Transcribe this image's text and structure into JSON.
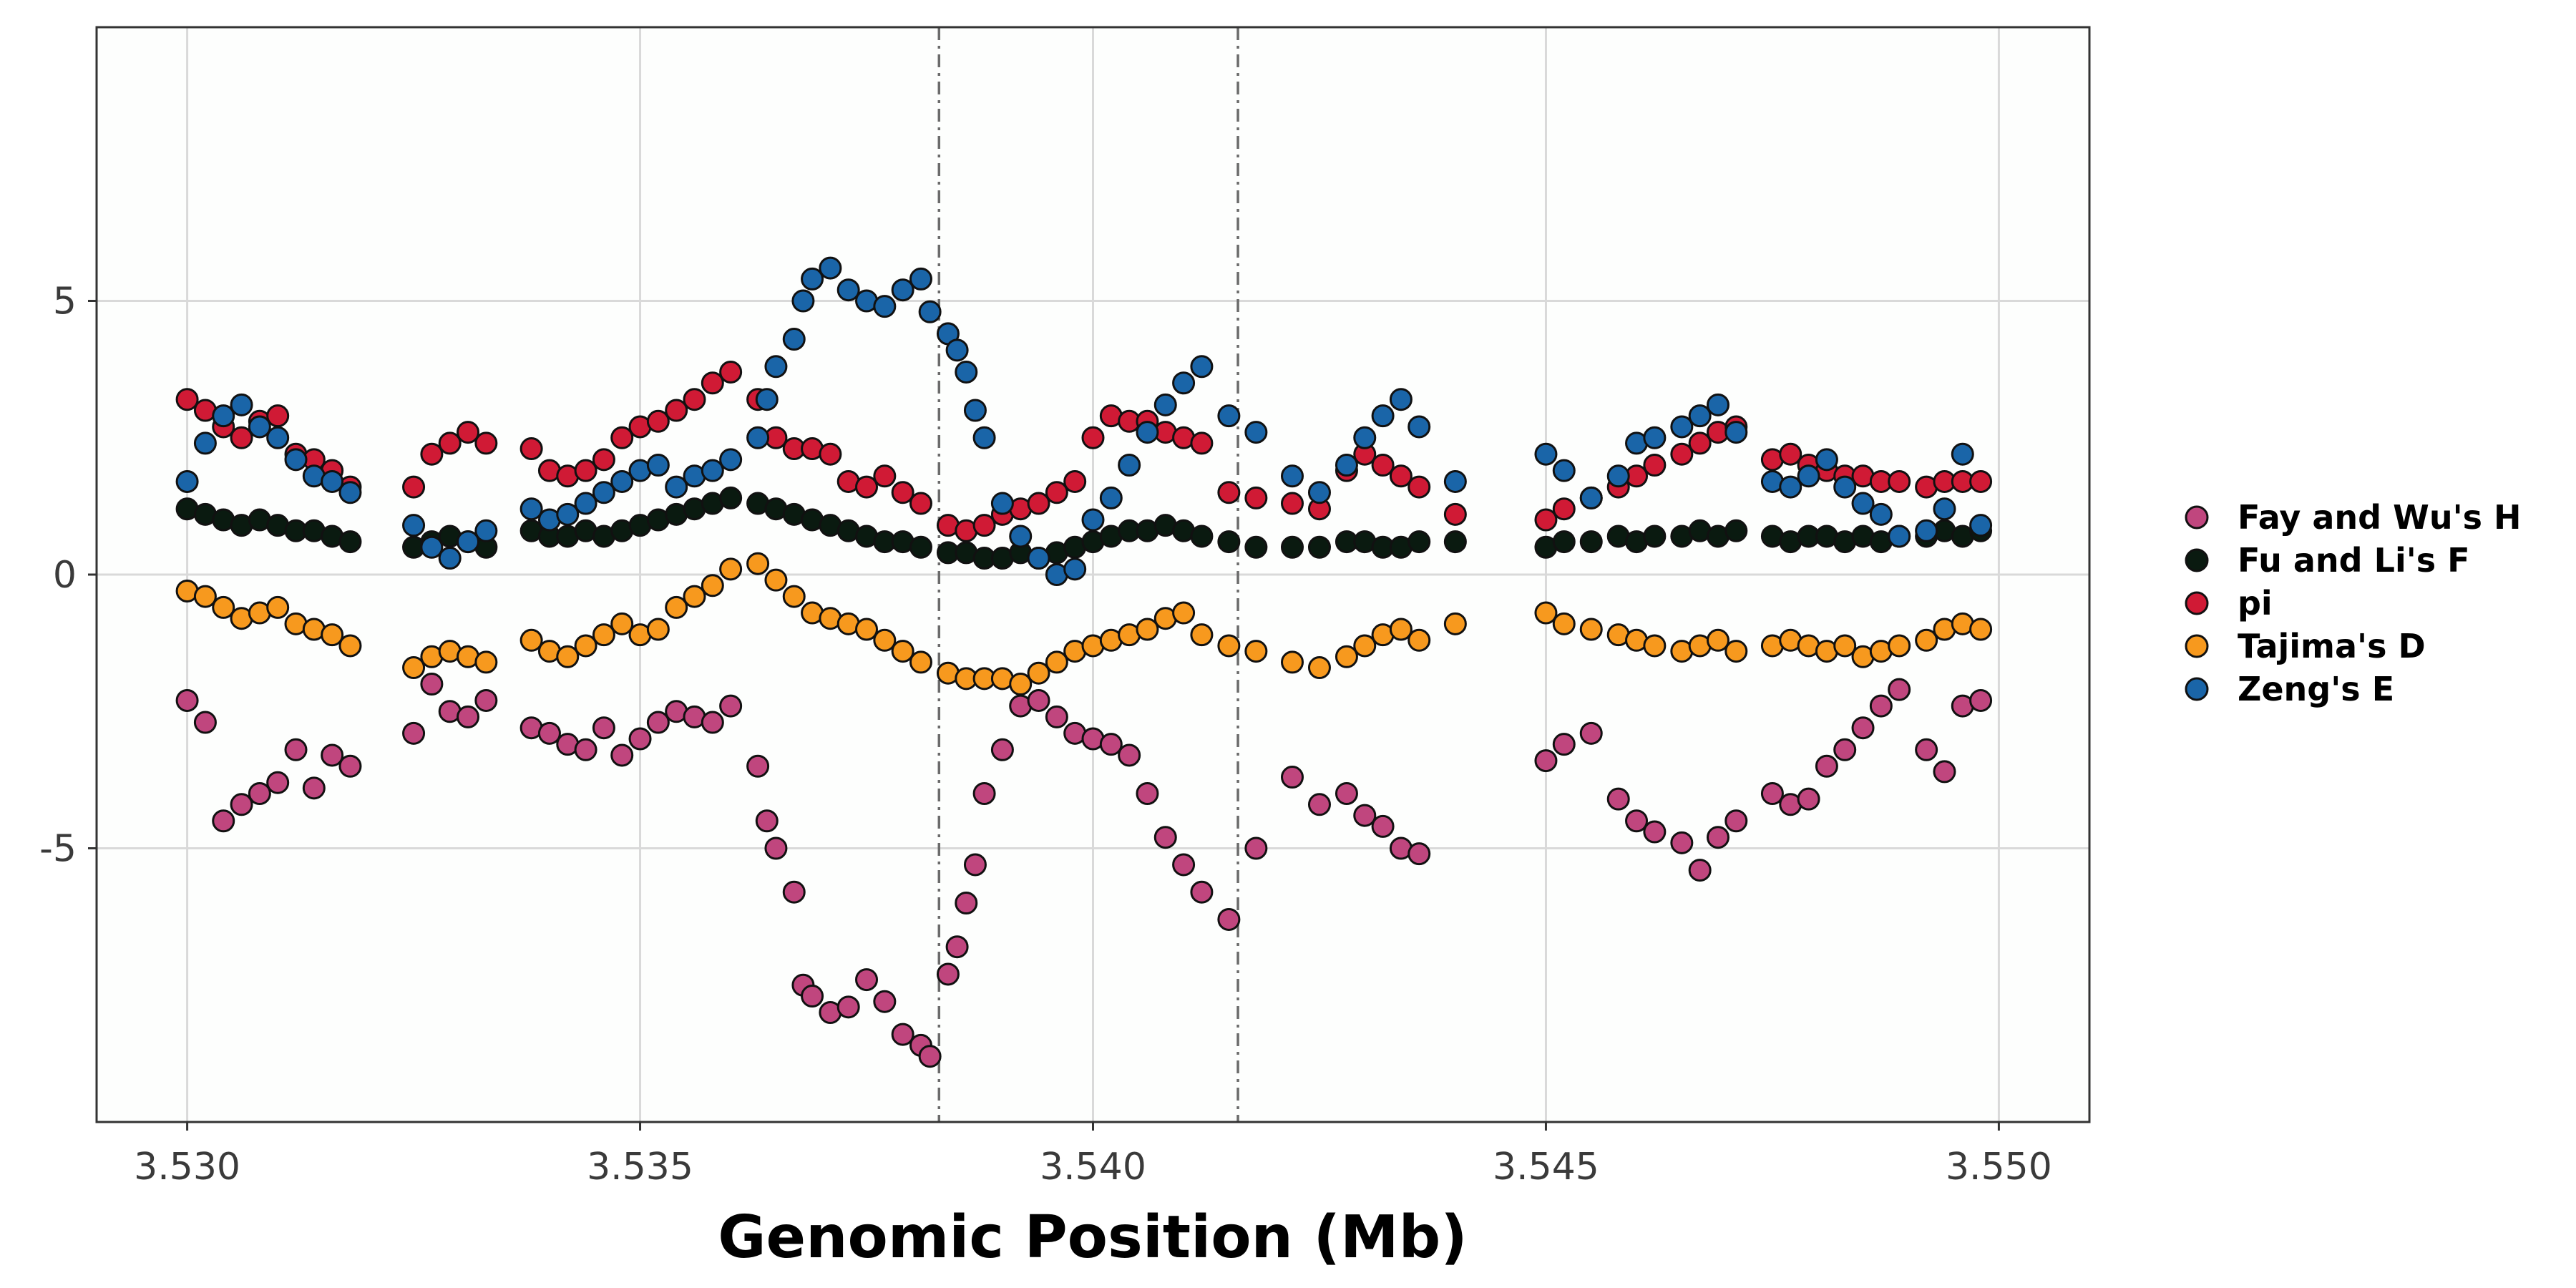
{
  "chart_data": {
    "type": "scatter",
    "title": "",
    "xlabel": "Genomic Position (Mb)",
    "ylabel": "",
    "xlim": [
      3.529,
      3.551
    ],
    "ylim": [
      -10,
      10
    ],
    "x_ticks": [
      3.53,
      3.535,
      3.54,
      3.545,
      3.55
    ],
    "x_tick_labels": [
      "3.530",
      "3.535",
      "3.540",
      "3.545",
      "3.550"
    ],
    "y_ticks": [
      -5,
      0,
      5
    ],
    "y_tick_labels": [
      "-5",
      "0",
      "5"
    ],
    "grid": true,
    "legend_position": "right",
    "vlines": [
      3.5383,
      3.5416
    ],
    "vline_style": "dashdot",
    "series": [
      {
        "name": "Fay and Wu's H",
        "color": "#c0467e",
        "x": [
          3.53,
          3.5302,
          3.5304,
          3.5306,
          3.5308,
          3.531,
          3.5312,
          3.5314,
          3.5316,
          3.5318,
          3.5325,
          3.5327,
          3.5329,
          3.5331,
          3.5333,
          3.5338,
          3.534,
          3.5342,
          3.5344,
          3.5346,
          3.5348,
          3.535,
          3.5352,
          3.5354,
          3.5356,
          3.5358,
          3.536,
          3.5363,
          3.5364,
          3.5365,
          3.5367,
          3.5368,
          3.5369,
          3.5371,
          3.5373,
          3.5375,
          3.5377,
          3.5379,
          3.5381,
          3.5382,
          3.5384,
          3.5385,
          3.5386,
          3.5387,
          3.5388,
          3.539,
          3.5392,
          3.5394,
          3.5396,
          3.5398,
          3.54,
          3.5402,
          3.5404,
          3.5406,
          3.5408,
          3.541,
          3.5412,
          3.5415,
          3.5418,
          3.5422,
          3.5425,
          3.5428,
          3.543,
          3.5432,
          3.5434,
          3.5436,
          3.545,
          3.5452,
          3.5455,
          3.5458,
          3.546,
          3.5462,
          3.5465,
          3.5467,
          3.5469,
          3.5471,
          3.5475,
          3.5477,
          3.5479,
          3.5481,
          3.5483,
          3.5485,
          3.5487,
          3.5489,
          3.5492,
          3.5494,
          3.5496,
          3.5498
        ],
        "y": [
          -2.3,
          -2.7,
          -4.5,
          -4.2,
          -4.0,
          -3.8,
          -3.2,
          -3.9,
          -3.3,
          -3.5,
          -2.9,
          -2.0,
          -2.5,
          -2.6,
          -2.3,
          -2.8,
          -2.9,
          -3.1,
          -3.2,
          -2.8,
          -3.3,
          -3.0,
          -2.7,
          -2.5,
          -2.6,
          -2.7,
          -2.4,
          -3.5,
          -4.5,
          -5.0,
          -5.8,
          -7.5,
          -7.7,
          -8.0,
          -7.9,
          -7.4,
          -7.8,
          -8.4,
          -8.6,
          -8.8,
          -7.3,
          -6.8,
          -6.0,
          -5.3,
          -4.0,
          -3.2,
          -2.4,
          -2.3,
          -2.6,
          -2.9,
          -3.0,
          -3.1,
          -3.3,
          -4.0,
          -4.8,
          -5.3,
          -5.8,
          -6.3,
          -5.0,
          -3.7,
          -4.2,
          -4.0,
          -4.4,
          -4.6,
          -5.0,
          -5.1,
          -3.4,
          -3.1,
          -2.9,
          -4.1,
          -4.5,
          -4.7,
          -4.9,
          -5.4,
          -4.8,
          -4.5,
          -4.0,
          -4.2,
          -4.1,
          -3.5,
          -3.2,
          -2.8,
          -2.4,
          -2.1,
          -3.2,
          -3.6,
          -2.4,
          -2.3
        ]
      },
      {
        "name": "Fu and Li's F",
        "color": "#0a1a10",
        "x": [
          3.53,
          3.5302,
          3.5304,
          3.5306,
          3.5308,
          3.531,
          3.5312,
          3.5314,
          3.5316,
          3.5318,
          3.5325,
          3.5327,
          3.5329,
          3.5331,
          3.5333,
          3.5338,
          3.534,
          3.5342,
          3.5344,
          3.5346,
          3.5348,
          3.535,
          3.5352,
          3.5354,
          3.5356,
          3.5358,
          3.536,
          3.5363,
          3.5365,
          3.5367,
          3.5369,
          3.5371,
          3.5373,
          3.5375,
          3.5377,
          3.5379,
          3.5381,
          3.5384,
          3.5386,
          3.5388,
          3.539,
          3.5392,
          3.5394,
          3.5396,
          3.5398,
          3.54,
          3.5402,
          3.5404,
          3.5406,
          3.5408,
          3.541,
          3.5412,
          3.5415,
          3.5418,
          3.5422,
          3.5425,
          3.5428,
          3.543,
          3.5432,
          3.5434,
          3.5436,
          3.544,
          3.545,
          3.5452,
          3.5455,
          3.5458,
          3.546,
          3.5462,
          3.5465,
          3.5467,
          3.5469,
          3.5471,
          3.5475,
          3.5477,
          3.5479,
          3.5481,
          3.5483,
          3.5485,
          3.5487,
          3.5489,
          3.5492,
          3.5494,
          3.5496,
          3.5498
        ],
        "y": [
          1.2,
          1.1,
          1.0,
          0.9,
          1.0,
          0.9,
          0.8,
          0.8,
          0.7,
          0.6,
          0.5,
          0.6,
          0.7,
          0.6,
          0.5,
          0.8,
          0.7,
          0.7,
          0.8,
          0.7,
          0.8,
          0.9,
          1.0,
          1.1,
          1.2,
          1.3,
          1.4,
          1.3,
          1.2,
          1.1,
          1.0,
          0.9,
          0.8,
          0.7,
          0.6,
          0.6,
          0.5,
          0.4,
          0.4,
          0.3,
          0.3,
          0.4,
          0.3,
          0.4,
          0.5,
          0.6,
          0.7,
          0.8,
          0.8,
          0.9,
          0.8,
          0.7,
          0.6,
          0.5,
          0.5,
          0.5,
          0.6,
          0.6,
          0.5,
          0.5,
          0.6,
          0.6,
          0.5,
          0.6,
          0.6,
          0.7,
          0.6,
          0.7,
          0.7,
          0.8,
          0.7,
          0.8,
          0.7,
          0.6,
          0.7,
          0.7,
          0.6,
          0.7,
          0.6,
          0.7,
          0.7,
          0.8,
          0.7,
          0.8
        ]
      },
      {
        "name": "pi",
        "color": "#d01a35",
        "x": [
          3.53,
          3.5302,
          3.5304,
          3.5306,
          3.5308,
          3.531,
          3.5312,
          3.5314,
          3.5316,
          3.5318,
          3.5325,
          3.5327,
          3.5329,
          3.5331,
          3.5333,
          3.5338,
          3.534,
          3.5342,
          3.5344,
          3.5346,
          3.5348,
          3.535,
          3.5352,
          3.5354,
          3.5356,
          3.5358,
          3.536,
          3.5363,
          3.5365,
          3.5367,
          3.5369,
          3.5371,
          3.5373,
          3.5375,
          3.5377,
          3.5379,
          3.5381,
          3.5384,
          3.5386,
          3.5388,
          3.539,
          3.5392,
          3.5394,
          3.5396,
          3.5398,
          3.54,
          3.5402,
          3.5404,
          3.5406,
          3.5408,
          3.541,
          3.5412,
          3.5415,
          3.5418,
          3.5422,
          3.5425,
          3.5428,
          3.543,
          3.5432,
          3.5434,
          3.5436,
          3.544,
          3.545,
          3.5452,
          3.5455,
          3.5458,
          3.546,
          3.5462,
          3.5465,
          3.5467,
          3.5469,
          3.5471,
          3.5475,
          3.5477,
          3.5479,
          3.5481,
          3.5483,
          3.5485,
          3.5487,
          3.5489,
          3.5492,
          3.5494,
          3.5496,
          3.5498
        ],
        "y": [
          3.2,
          3.0,
          2.7,
          2.5,
          2.8,
          2.9,
          2.2,
          2.1,
          1.9,
          1.6,
          1.6,
          2.2,
          2.4,
          2.6,
          2.4,
          2.3,
          1.9,
          1.8,
          1.9,
          2.1,
          2.5,
          2.7,
          2.8,
          3.0,
          3.2,
          3.5,
          3.7,
          3.2,
          2.5,
          2.3,
          2.3,
          2.2,
          1.7,
          1.6,
          1.8,
          1.5,
          1.3,
          0.9,
          0.8,
          0.9,
          1.1,
          1.2,
          1.3,
          1.5,
          1.7,
          2.5,
          2.9,
          2.8,
          2.8,
          2.6,
          2.5,
          2.4,
          1.5,
          1.4,
          1.3,
          1.2,
          1.9,
          2.2,
          2.0,
          1.8,
          1.6,
          1.1,
          1.0,
          1.2,
          1.4,
          1.6,
          1.8,
          2.0,
          2.2,
          2.4,
          2.6,
          2.7,
          2.1,
          2.2,
          2.0,
          1.9,
          1.8,
          1.8,
          1.7,
          1.7,
          1.6,
          1.7,
          1.7,
          1.7
        ]
      },
      {
        "name": "Tajima's D",
        "color": "#f7991e",
        "x": [
          3.53,
          3.5302,
          3.5304,
          3.5306,
          3.5308,
          3.531,
          3.5312,
          3.5314,
          3.5316,
          3.5318,
          3.5325,
          3.5327,
          3.5329,
          3.5331,
          3.5333,
          3.5338,
          3.534,
          3.5342,
          3.5344,
          3.5346,
          3.5348,
          3.535,
          3.5352,
          3.5354,
          3.5356,
          3.5358,
          3.536,
          3.5363,
          3.5365,
          3.5367,
          3.5369,
          3.5371,
          3.5373,
          3.5375,
          3.5377,
          3.5379,
          3.5381,
          3.5384,
          3.5386,
          3.5388,
          3.539,
          3.5392,
          3.5394,
          3.5396,
          3.5398,
          3.54,
          3.5402,
          3.5404,
          3.5406,
          3.5408,
          3.541,
          3.5412,
          3.5415,
          3.5418,
          3.5422,
          3.5425,
          3.5428,
          3.543,
          3.5432,
          3.5434,
          3.5436,
          3.544,
          3.545,
          3.5452,
          3.5455,
          3.5458,
          3.546,
          3.5462,
          3.5465,
          3.5467,
          3.5469,
          3.5471,
          3.5475,
          3.5477,
          3.5479,
          3.5481,
          3.5483,
          3.5485,
          3.5487,
          3.5489,
          3.5492,
          3.5494,
          3.5496,
          3.5498
        ],
        "y": [
          -0.3,
          -0.4,
          -0.6,
          -0.8,
          -0.7,
          -0.6,
          -0.9,
          -1.0,
          -1.1,
          -1.3,
          -1.7,
          -1.5,
          -1.4,
          -1.5,
          -1.6,
          -1.2,
          -1.4,
          -1.5,
          -1.3,
          -1.1,
          -0.9,
          -1.1,
          -1.0,
          -0.6,
          -0.4,
          -0.2,
          0.1,
          0.2,
          -0.1,
          -0.4,
          -0.7,
          -0.8,
          -0.9,
          -1.0,
          -1.2,
          -1.4,
          -1.6,
          -1.8,
          -1.9,
          -1.9,
          -1.9,
          -2.0,
          -1.8,
          -1.6,
          -1.4,
          -1.3,
          -1.2,
          -1.1,
          -1.0,
          -0.8,
          -0.7,
          -1.1,
          -1.3,
          -1.4,
          -1.6,
          -1.7,
          -1.5,
          -1.3,
          -1.1,
          -1.0,
          -1.2,
          -0.9,
          -0.7,
          -0.9,
          -1.0,
          -1.1,
          -1.2,
          -1.3,
          -1.4,
          -1.3,
          -1.2,
          -1.4,
          -1.3,
          -1.2,
          -1.3,
          -1.4,
          -1.3,
          -1.5,
          -1.4,
          -1.3,
          -1.2,
          -1.0,
          -0.9,
          -1.0
        ]
      },
      {
        "name": "Zeng's E",
        "color": "#1a65a8",
        "x": [
          3.53,
          3.5302,
          3.5304,
          3.5306,
          3.5308,
          3.531,
          3.5312,
          3.5314,
          3.5316,
          3.5318,
          3.5325,
          3.5327,
          3.5329,
          3.5331,
          3.5333,
          3.5338,
          3.534,
          3.5342,
          3.5344,
          3.5346,
          3.5348,
          3.535,
          3.5352,
          3.5354,
          3.5356,
          3.5358,
          3.536,
          3.5363,
          3.5364,
          3.5365,
          3.5367,
          3.5368,
          3.5369,
          3.5371,
          3.5373,
          3.5375,
          3.5377,
          3.5379,
          3.5381,
          3.5382,
          3.5384,
          3.5385,
          3.5386,
          3.5387,
          3.5388,
          3.539,
          3.5392,
          3.5394,
          3.5396,
          3.5398,
          3.54,
          3.5402,
          3.5404,
          3.5406,
          3.5408,
          3.541,
          3.5412,
          3.5415,
          3.5418,
          3.5422,
          3.5425,
          3.5428,
          3.543,
          3.5432,
          3.5434,
          3.5436,
          3.544,
          3.545,
          3.5452,
          3.5455,
          3.5458,
          3.546,
          3.5462,
          3.5465,
          3.5467,
          3.5469,
          3.5471,
          3.5475,
          3.5477,
          3.5479,
          3.5481,
          3.5483,
          3.5485,
          3.5487,
          3.5489,
          3.5492,
          3.5494,
          3.5496,
          3.5498
        ],
        "y": [
          1.7,
          2.4,
          2.9,
          3.1,
          2.7,
          2.5,
          2.1,
          1.8,
          1.7,
          1.5,
          0.9,
          0.5,
          0.3,
          0.6,
          0.8,
          1.2,
          1.0,
          1.1,
          1.3,
          1.5,
          1.7,
          1.9,
          2.0,
          1.6,
          1.8,
          1.9,
          2.1,
          2.5,
          3.2,
          3.8,
          4.3,
          5.0,
          5.4,
          5.6,
          5.2,
          5.0,
          4.9,
          5.2,
          5.4,
          4.8,
          4.4,
          4.1,
          3.7,
          3.0,
          2.5,
          1.3,
          0.7,
          0.3,
          0.0,
          0.1,
          1.0,
          1.4,
          2.0,
          2.6,
          3.1,
          3.5,
          3.8,
          2.9,
          2.6,
          1.8,
          1.5,
          2.0,
          2.5,
          2.9,
          3.2,
          2.7,
          1.7,
          2.2,
          1.9,
          1.4,
          1.8,
          2.4,
          2.5,
          2.7,
          2.9,
          3.1,
          2.6,
          1.7,
          1.6,
          1.8,
          2.1,
          1.6,
          1.3,
          1.1,
          0.7,
          0.8,
          1.2,
          2.2,
          0.9
        ]
      }
    ]
  }
}
